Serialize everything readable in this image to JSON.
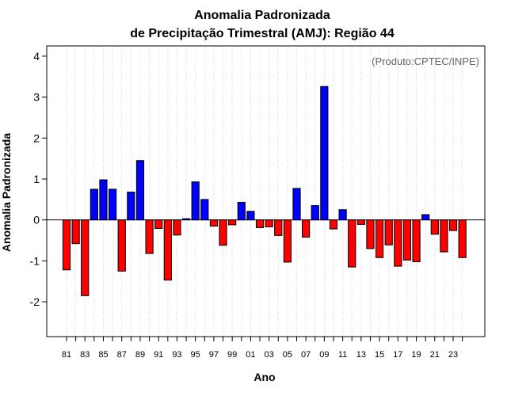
{
  "chart_data": {
    "type": "bar",
    "title": "Anomalia Padronizada",
    "subtitle": "de Precipitação Trimestral (AMJ): Região 44",
    "xlabel": "Ano",
    "ylabel": "Anomalia Padronizada",
    "annotation": "(Produto:CPTEC/INPE)",
    "ylim": [
      -2.85,
      4.25
    ],
    "yticks": [
      -2,
      -1,
      0,
      1,
      2,
      3,
      4
    ],
    "grid": "vertical-dotted",
    "colors": {
      "positive": "#0000ff",
      "negative": "#ff0000",
      "zero_line": "#000000",
      "grid": "#d3d3d3"
    },
    "xtick_labels": [
      "81",
      "83",
      "85",
      "87",
      "89",
      "91",
      "93",
      "95",
      "97",
      "99",
      "01",
      "03",
      "05",
      "07",
      "09",
      "11",
      "13",
      "15",
      "17",
      "19",
      "21",
      "23"
    ],
    "categories": [
      "1981",
      "1982",
      "1983",
      "1984",
      "1985",
      "1986",
      "1987",
      "1988",
      "1989",
      "1990",
      "1991",
      "1992",
      "1993",
      "1994",
      "1995",
      "1996",
      "1997",
      "1998",
      "1999",
      "2000",
      "2001",
      "2002",
      "2003",
      "2004",
      "2005",
      "2006",
      "2007",
      "2008",
      "2009",
      "2010",
      "2011",
      "2012",
      "2013",
      "2014",
      "2015",
      "2016",
      "2017",
      "2018",
      "2019",
      "2020",
      "2021",
      "2022",
      "2023",
      "2024"
    ],
    "values": [
      -1.22,
      -0.58,
      -1.85,
      0.75,
      0.98,
      0.75,
      -1.25,
      0.68,
      1.45,
      -0.82,
      -0.21,
      -1.47,
      -0.37,
      0.03,
      0.93,
      0.5,
      -0.15,
      -0.62,
      -0.12,
      0.43,
      0.21,
      -0.19,
      -0.17,
      -0.38,
      -1.03,
      0.77,
      -0.42,
      0.35,
      3.26,
      -0.22,
      0.25,
      -1.15,
      -0.11,
      -0.7,
      -0.92,
      -0.61,
      -1.13,
      -0.98,
      -1.02,
      0.13,
      -0.35,
      -0.78,
      -0.26,
      -0.92
    ]
  }
}
